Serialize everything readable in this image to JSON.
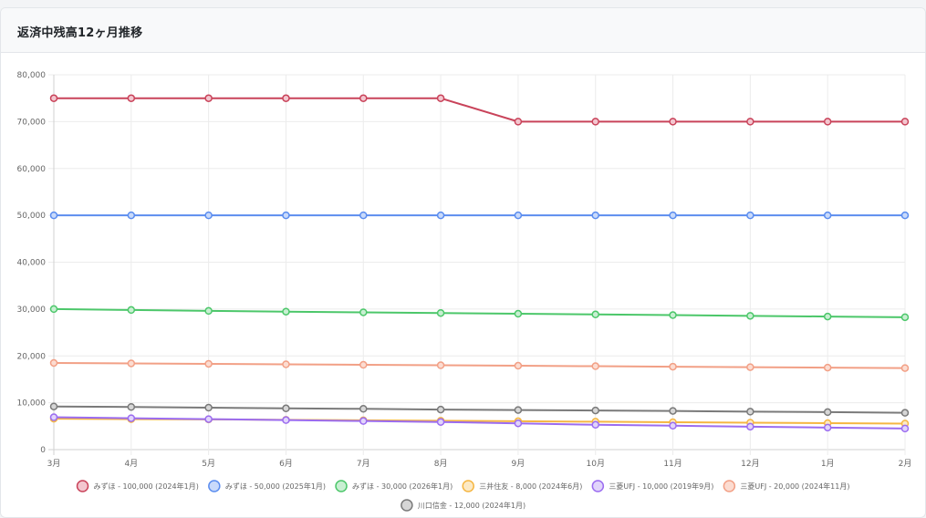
{
  "header": {
    "title": "返済中残高12ヶ月推移"
  },
  "chart_data": {
    "type": "line",
    "title": "",
    "xlabel": "",
    "ylabel": "",
    "ylim": [
      0,
      80000
    ],
    "y_ticks": [
      "0",
      "10,000",
      "20,000",
      "30,000",
      "40,000",
      "50,000",
      "60,000",
      "70,000",
      "80,000"
    ],
    "y_tick_values": [
      0,
      10000,
      20000,
      30000,
      40000,
      50000,
      60000,
      70000,
      80000
    ],
    "categories": [
      "3月",
      "4月",
      "5月",
      "6月",
      "7月",
      "8月",
      "9月",
      "10月",
      "11月",
      "12月",
      "1月",
      "2月"
    ],
    "grid": true,
    "legend_position": "bottom",
    "series": [
      {
        "name": "みずほ - 100,000 (2024年1月)",
        "color": "#c9435a",
        "fill": "#f3c6cf",
        "values": [
          75000,
          75000,
          75000,
          75000,
          75000,
          75000,
          70000,
          70000,
          70000,
          70000,
          70000,
          70000
        ]
      },
      {
        "name": "みずほ - 50,000 (2025年1月)",
        "color": "#5b8def",
        "fill": "#c9dafb",
        "values": [
          50000,
          50000,
          50000,
          50000,
          50000,
          50000,
          50000,
          50000,
          50000,
          50000,
          50000,
          50000
        ]
      },
      {
        "name": "みずほ - 30,000 (2026年1月)",
        "color": "#4cc76a",
        "fill": "#c8efd2",
        "values": [
          30000,
          29800,
          29600,
          29450,
          29300,
          29150,
          29000,
          28850,
          28700,
          28550,
          28400,
          28250
        ]
      },
      {
        "name": "三井住友 - 8,000 (2024年6月)",
        "color": "#f5b642",
        "fill": "#fce9c4",
        "values": [
          6600,
          6500,
          6450,
          6350,
          6250,
          6150,
          6050,
          5950,
          5850,
          5750,
          5650,
          5550
        ]
      },
      {
        "name": "三菱UFJ - 10,000 (2019年9月)",
        "color": "#9b6cf0",
        "fill": "#e1d4fb",
        "values": [
          6900,
          6700,
          6500,
          6300,
          6100,
          5900,
          5600,
          5300,
          5100,
          4900,
          4700,
          4500
        ]
      },
      {
        "name": "三菱UFJ - 20,000 (2024年11月)",
        "color": "#f2a086",
        "fill": "#fcdcd1",
        "values": [
          18500,
          18400,
          18300,
          18200,
          18100,
          18000,
          17900,
          17800,
          17700,
          17600,
          17500,
          17400
        ]
      },
      {
        "name": "川口信金 - 12,000 (2024年1月)",
        "color": "#7a7a7a",
        "fill": "#d6d6d6",
        "values": [
          9200,
          9100,
          8950,
          8800,
          8700,
          8550,
          8450,
          8350,
          8250,
          8100,
          8000,
          7850
        ]
      }
    ]
  }
}
